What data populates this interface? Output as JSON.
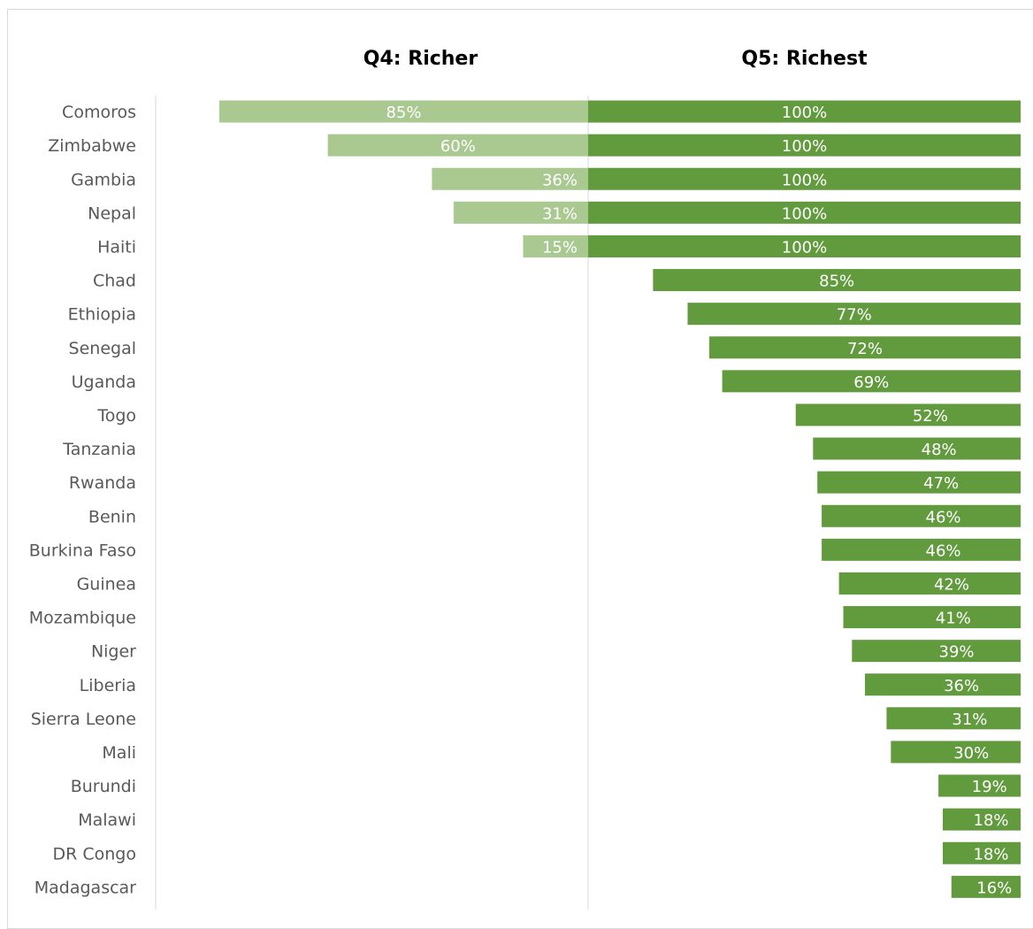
{
  "chart_data": {
    "type": "bar",
    "orientation": "horizontal",
    "layout": "diverging-butterfly",
    "title": "",
    "xlabel": "",
    "ylabel": "",
    "xlim": [
      0,
      100
    ],
    "grid": false,
    "legend": "none",
    "unit_suffix": "%",
    "categories": [
      "Comoros",
      "Zimbabwe",
      "Gambia",
      "Nepal",
      "Haiti",
      "Chad",
      "Ethiopia",
      "Senegal",
      "Uganda",
      "Togo",
      "Tanzania",
      "Rwanda",
      "Benin",
      "Burkina Faso",
      "Guinea",
      "Mozambique",
      "Niger",
      "Liberia",
      "Sierra Leone",
      "Mali",
      "Burundi",
      "Malawi",
      "DR Congo",
      "Madagascar"
    ],
    "series": [
      {
        "name": "Q4: Richer",
        "color": "#a9c991",
        "side": "left",
        "values": [
          85,
          60,
          36,
          31,
          15,
          null,
          null,
          null,
          null,
          null,
          null,
          null,
          null,
          null,
          null,
          null,
          null,
          null,
          null,
          null,
          null,
          null,
          null,
          null
        ]
      },
      {
        "name": "Q5: Richest",
        "color": "#629a3e",
        "side": "right",
        "values": [
          100,
          100,
          100,
          100,
          100,
          85,
          77,
          72,
          69,
          52,
          48,
          47,
          46,
          46,
          42,
          41,
          39,
          36,
          31,
          30,
          19,
          18,
          18,
          16
        ]
      }
    ]
  },
  "colors": {
    "axis": "#d9d9d9",
    "label": "#595959",
    "bar_text": "#ffffff"
  }
}
